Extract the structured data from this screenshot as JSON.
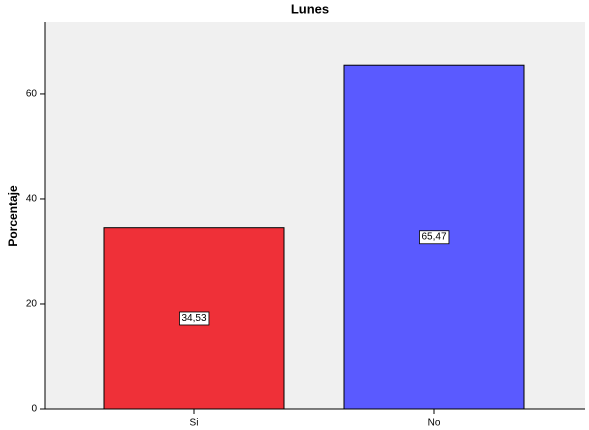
{
  "chart_data": {
    "type": "bar",
    "title": "Lunes",
    "y_label": "Porcentaje",
    "categories": [
      "Si",
      "No"
    ],
    "series": [
      {
        "name": "Lunes",
        "colors": [
          "#ef3038",
          "#5a5aff"
        ],
        "values": [
          34.53,
          65.47
        ],
        "value_labels": [
          "34,53",
          "65,47"
        ]
      }
    ],
    "ylim": [
      0,
      73.7
    ],
    "yticks": [
      0,
      20,
      40,
      60
    ],
    "grid": false
  }
}
